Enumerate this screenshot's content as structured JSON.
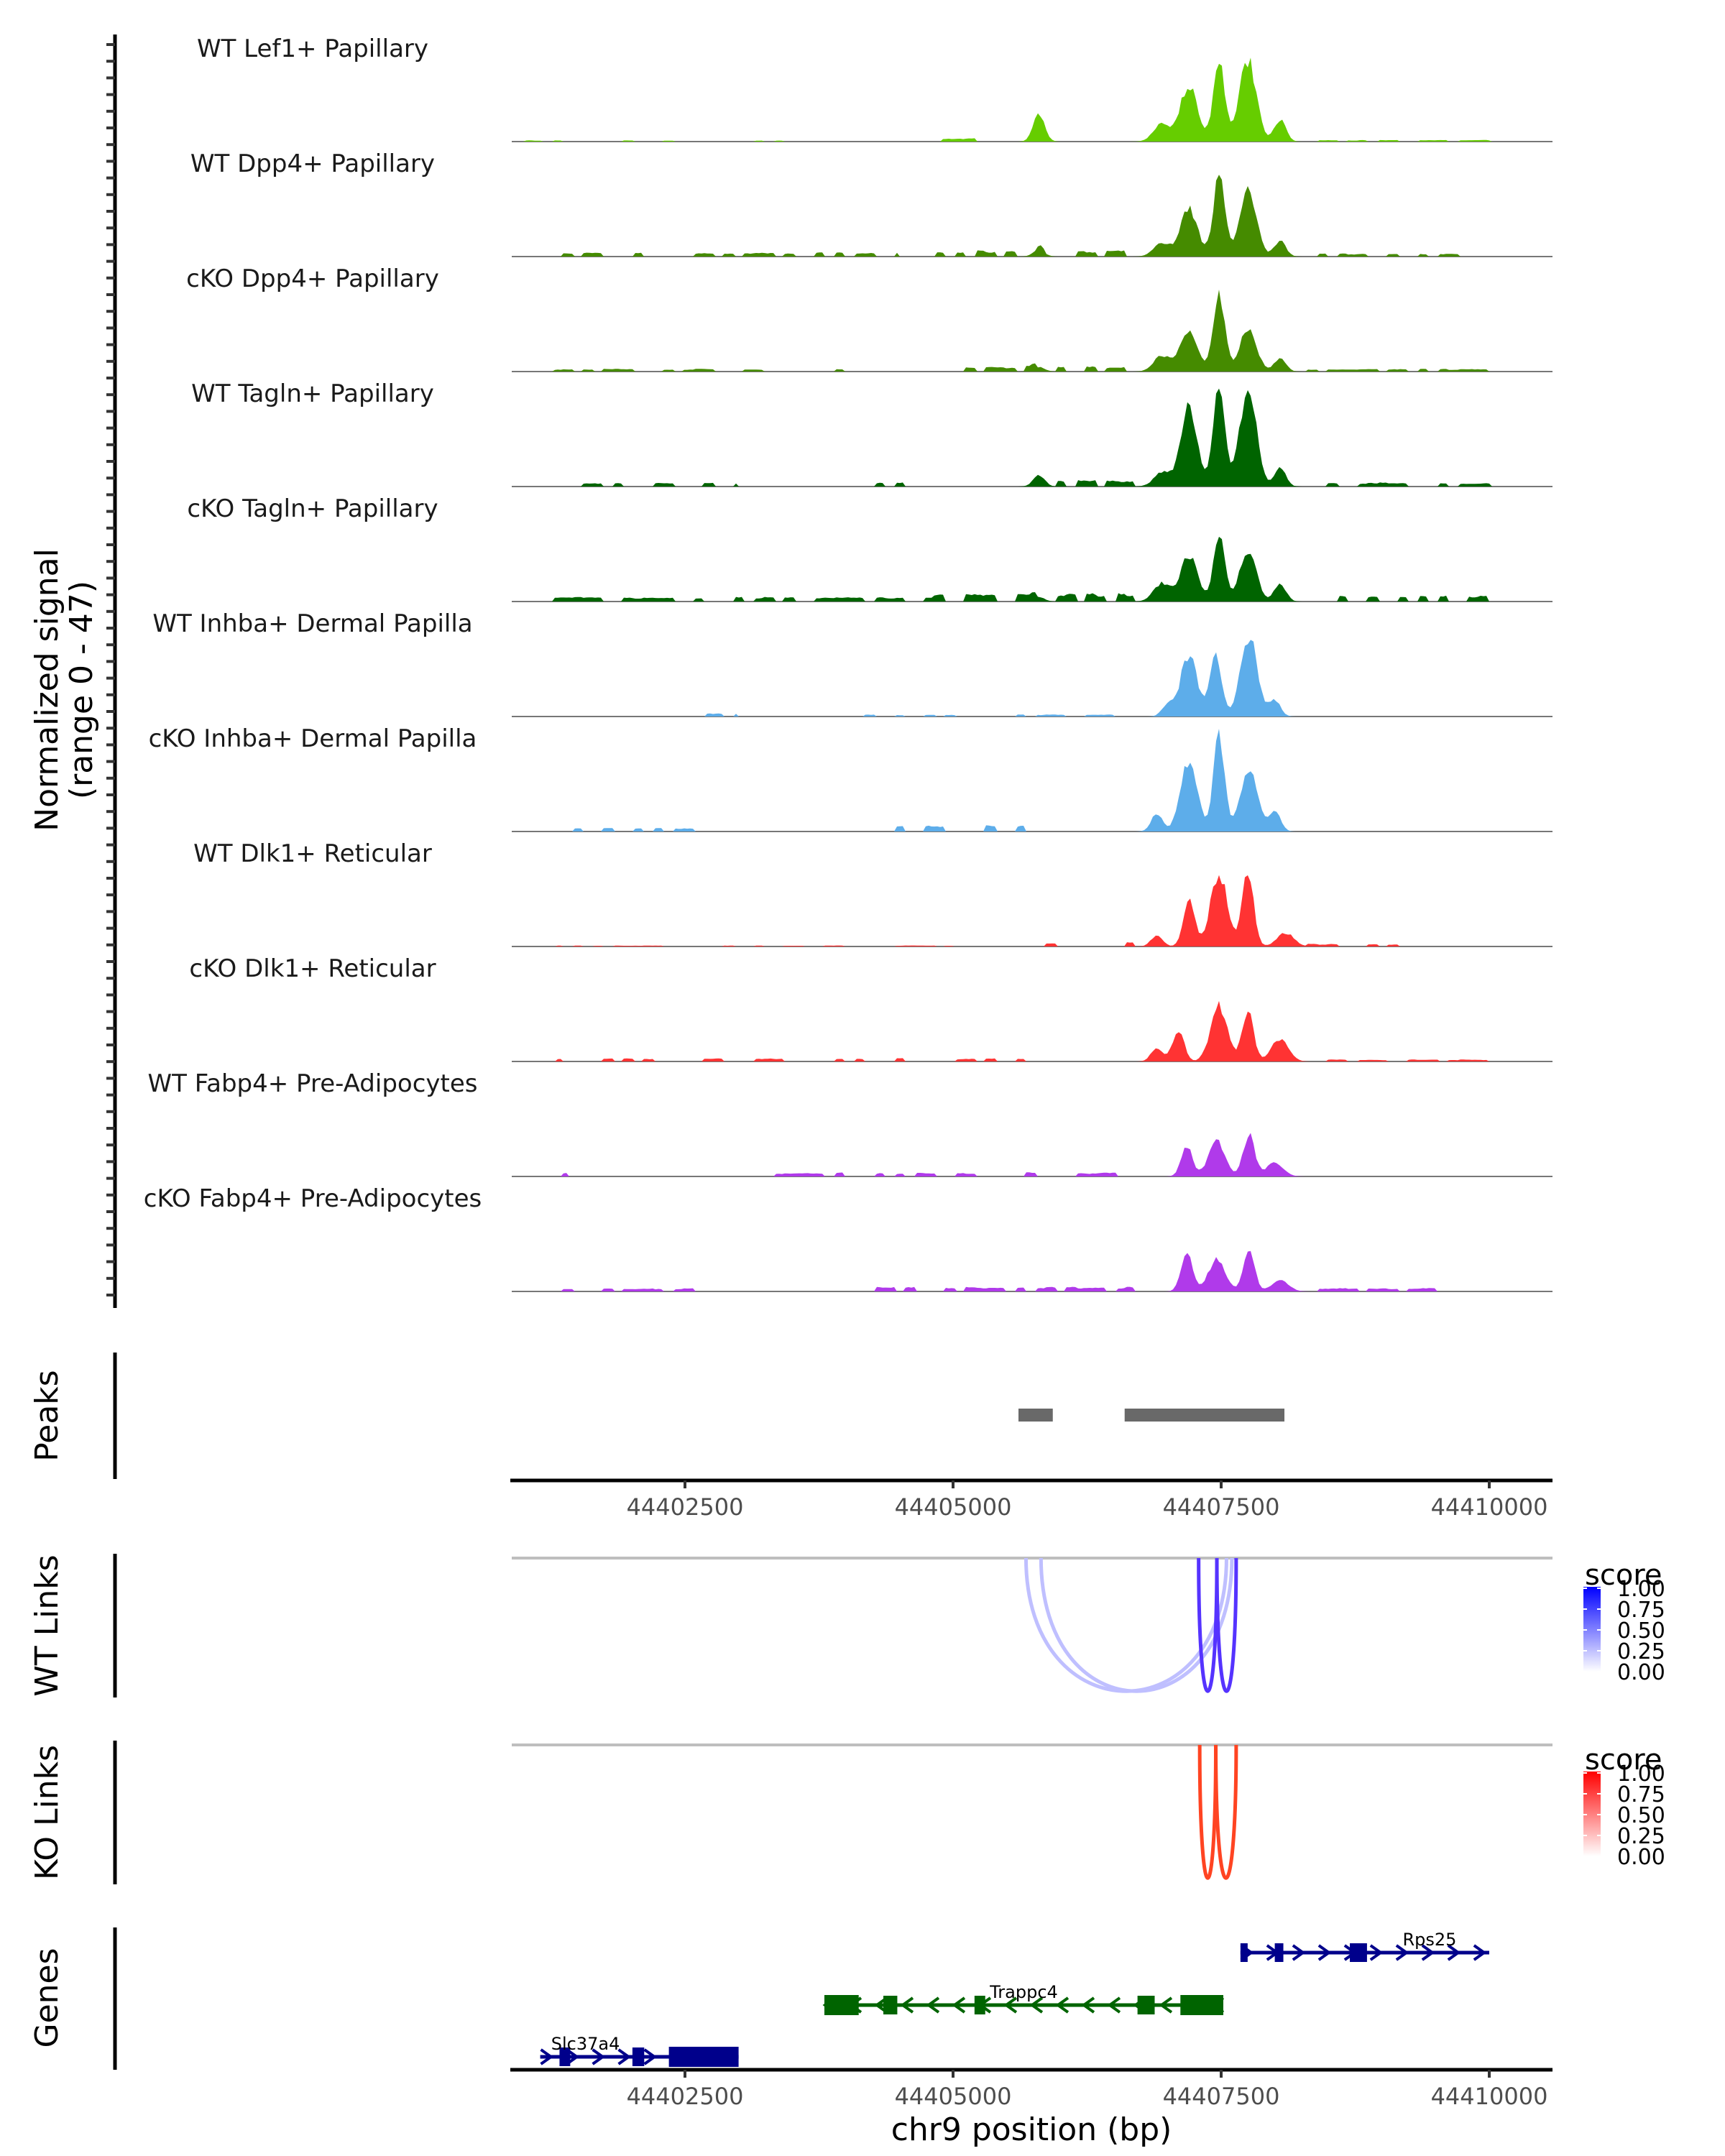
{
  "chart_data": {
    "type": "area",
    "title": "",
    "region": {
      "chromosome": "chr9",
      "start": 44400900,
      "end": 44410570
    },
    "xlabel": "chr9 position (bp)",
    "x_ticks": [
      44402500,
      44405000,
      44407500,
      44410000
    ],
    "x_tick_labels": [
      "44402500",
      "44405000",
      "44407500",
      "44410000"
    ],
    "coverage": {
      "ylabel_line1": "Normalized signal",
      "ylabel_line2": "(range 0 - 47)",
      "ylim": [
        0,
        47
      ],
      "tracks": [
        {
          "name": "WT Lef1+ Papillary",
          "color": "#66CD00",
          "peaks": [
            [
              44405800,
              11.5
            ],
            [
              44407200,
              25
            ],
            [
              44407480,
              35.5
            ],
            [
              44407750,
              35.5
            ],
            [
              44408050,
              9.5
            ],
            [
              44406950,
              8
            ]
          ],
          "noise": [
            [
              44401000,
              44403500,
              0.4
            ],
            [
              44404900,
              44405500,
              1.0
            ],
            [
              44408300,
              44410000,
              0.5
            ]
          ]
        },
        {
          "name": "WT Dpp4+ Papillary",
          "color": "#458B00",
          "peaks": [
            [
              44405800,
              3
            ],
            [
              44407200,
              21
            ],
            [
              44407480,
              35
            ],
            [
              44407750,
              29
            ],
            [
              44408050,
              7
            ],
            [
              44406950,
              6
            ]
          ],
          "noise": [
            [
              44401200,
              44404500,
              1.2
            ],
            [
              44404800,
              44406700,
              1.8
            ],
            [
              44408300,
              44410000,
              1.0
            ]
          ]
        },
        {
          "name": "cKO Dpp4+ Papillary",
          "color": "#458B00",
          "peaks": [
            [
              44405800,
              2
            ],
            [
              44407200,
              18
            ],
            [
              44407480,
              34
            ],
            [
              44407750,
              19
            ],
            [
              44408050,
              6
            ],
            [
              44406950,
              7
            ]
          ],
          "noise": [
            [
              44401200,
              44404500,
              0.8
            ],
            [
              44404800,
              44406700,
              1.6
            ],
            [
              44408300,
              44410000,
              0.8
            ]
          ]
        },
        {
          "name": "WT Tagln+ Papillary",
          "color": "#006400",
          "peaks": [
            [
              44405800,
              5
            ],
            [
              44407200,
              34
            ],
            [
              44407480,
              45
            ],
            [
              44407750,
              43
            ],
            [
              44408050,
              8
            ],
            [
              44406950,
              6
            ]
          ],
          "noise": [
            [
              44401200,
              44403000,
              1.2
            ],
            [
              44404200,
              44404900,
              1.2
            ],
            [
              44405900,
              44406700,
              2.2
            ],
            [
              44408300,
              44410000,
              1.2
            ]
          ]
        },
        {
          "name": "cKO Tagln+ Papillary",
          "color": "#006400",
          "peaks": [
            [
              44405800,
              2
            ],
            [
              44407200,
              20
            ],
            [
              44407480,
              28
            ],
            [
              44407750,
              22
            ],
            [
              44408050,
              8
            ],
            [
              44406950,
              8
            ]
          ],
          "noise": [
            [
              44401200,
              44404800,
              1.4
            ],
            [
              44404800,
              44406700,
              2.4
            ],
            [
              44408300,
              44410000,
              1.8
            ]
          ]
        },
        {
          "name": "WT Inhba+ Dermal Papilla",
          "color": "#5DADEA",
          "peaks": [
            [
              44407000,
              5
            ],
            [
              44407200,
              27
            ],
            [
              44407450,
              28
            ],
            [
              44407760,
              35
            ],
            [
              44408000,
              7
            ]
          ],
          "noise": [
            [
              44402700,
              44403000,
              1.2
            ],
            [
              44404000,
              44406500,
              0.6
            ],
            [
              44408400,
              44408800,
              1.6
            ]
          ]
        },
        {
          "name": "cKO Inhba+ Dermal Papilla",
          "color": "#5DADEA",
          "peaks": [
            [
              44406900,
              8
            ],
            [
              44407200,
              31
            ],
            [
              44407480,
              41
            ],
            [
              44407760,
              28
            ],
            [
              44408000,
              9
            ]
          ],
          "noise": [
            [
              44401300,
              44402600,
              1.2
            ],
            [
              44404300,
              44406400,
              1.8
            ]
          ]
        },
        {
          "name": "WT Dlk1+ Reticular",
          "color": "#FF3333",
          "peaks": [
            [
              44407200,
              20
            ],
            [
              44407480,
              32
            ],
            [
              44407750,
              32
            ],
            [
              44408100,
              6
            ],
            [
              44406900,
              5
            ]
          ],
          "noise": [
            [
              44401300,
              44405000,
              0.3
            ],
            [
              44405600,
              44406700,
              1.3
            ],
            [
              44408300,
              44409200,
              0.8
            ]
          ]
        },
        {
          "name": "cKO Dlk1+ Reticular",
          "color": "#FF3333",
          "peaks": [
            [
              44407100,
              14
            ],
            [
              44407480,
              24
            ],
            [
              44407750,
              22
            ],
            [
              44408050,
              10
            ],
            [
              44406900,
              6
            ]
          ],
          "noise": [
            [
              44401300,
              44406700,
              1.0
            ],
            [
              44408300,
              44410000,
              0.6
            ]
          ]
        },
        {
          "name": "WT Fabp4+ Pre-Adipocytes",
          "color": "#B03AEA",
          "peaks": [
            [
              44407180,
              13
            ],
            [
              44407460,
              15
            ],
            [
              44407760,
              18
            ],
            [
              44408000,
              6
            ]
          ],
          "noise": [
            [
              44401300,
              44401400,
              1.2
            ],
            [
              44403300,
              44406700,
              1.2
            ]
          ]
        },
        {
          "name": "cKO Fabp4+ Pre-Adipocytes",
          "color": "#B03AEA",
          "peaks": [
            [
              44407180,
              17
            ],
            [
              44407460,
              14
            ],
            [
              44407760,
              17
            ],
            [
              44408050,
              5
            ]
          ],
          "noise": [
            [
              44401300,
              44402600,
              1.0
            ],
            [
              44404200,
              44406700,
              1.4
            ],
            [
              44408300,
              44409500,
              1.0
            ]
          ]
        }
      ]
    },
    "peaks_track": {
      "label": "Peaks",
      "color": "#696969",
      "regions": [
        [
          44405610,
          44405930
        ],
        [
          44406600,
          44408090
        ]
      ]
    },
    "links": [
      {
        "label": "WT Links",
        "legend_title": "score",
        "low_color": "#FFFFFF",
        "high_color": "#0000FF",
        "legend_ticks": [
          "1.00",
          "0.75",
          "0.50",
          "0.25",
          "0.00"
        ],
        "arcs": [
          {
            "start": 44405680,
            "end": 44407550,
            "score": 0.2
          },
          {
            "start": 44405820,
            "end": 44407600,
            "score": 0.2
          },
          {
            "start": 44407290,
            "end": 44407460,
            "score": 0.85
          },
          {
            "start": 44407460,
            "end": 44407640,
            "score": 0.85
          }
        ]
      },
      {
        "label": "KO Links",
        "legend_title": "score",
        "low_color": "#FFFFFF",
        "high_color": "#FF0000",
        "legend_ticks": [
          "1.00",
          "0.75",
          "0.50",
          "0.25",
          "0.00"
        ],
        "arcs": [
          {
            "start": 44407300,
            "end": 44407450,
            "score": 0.85
          },
          {
            "start": 44407450,
            "end": 44407640,
            "score": 0.85
          }
        ]
      }
    ],
    "genes_track": {
      "label": "Genes",
      "genes": [
        {
          "name": "Rps25",
          "strand": "+",
          "color": "#00008B",
          "row": 0,
          "start": 44407680,
          "end": 44410000,
          "exons": [
            [
              44407680,
              44407720
            ],
            [
              44408000,
              44408080
            ],
            [
              44408700,
              44408860
            ]
          ]
        },
        {
          "name": "Trappc4",
          "strand": "-",
          "color": "#006400",
          "row": 1,
          "start": 44403800,
          "end": 44407520,
          "exons": [
            [
              44403800,
              44404120
            ],
            [
              44404350,
              44404480
            ],
            [
              44405200,
              44405300
            ],
            [
              44406720,
              44406880
            ],
            [
              44407120,
              44407520
            ]
          ]
        },
        {
          "name": "Slc37a4",
          "strand": "+",
          "color": "#00008B",
          "row": 2,
          "start": 44401150,
          "end": 44403000,
          "exons": [
            [
              44401330,
              44401430
            ],
            [
              44402010,
              44402120
            ],
            [
              44402350,
              44403000
            ]
          ]
        }
      ]
    }
  }
}
